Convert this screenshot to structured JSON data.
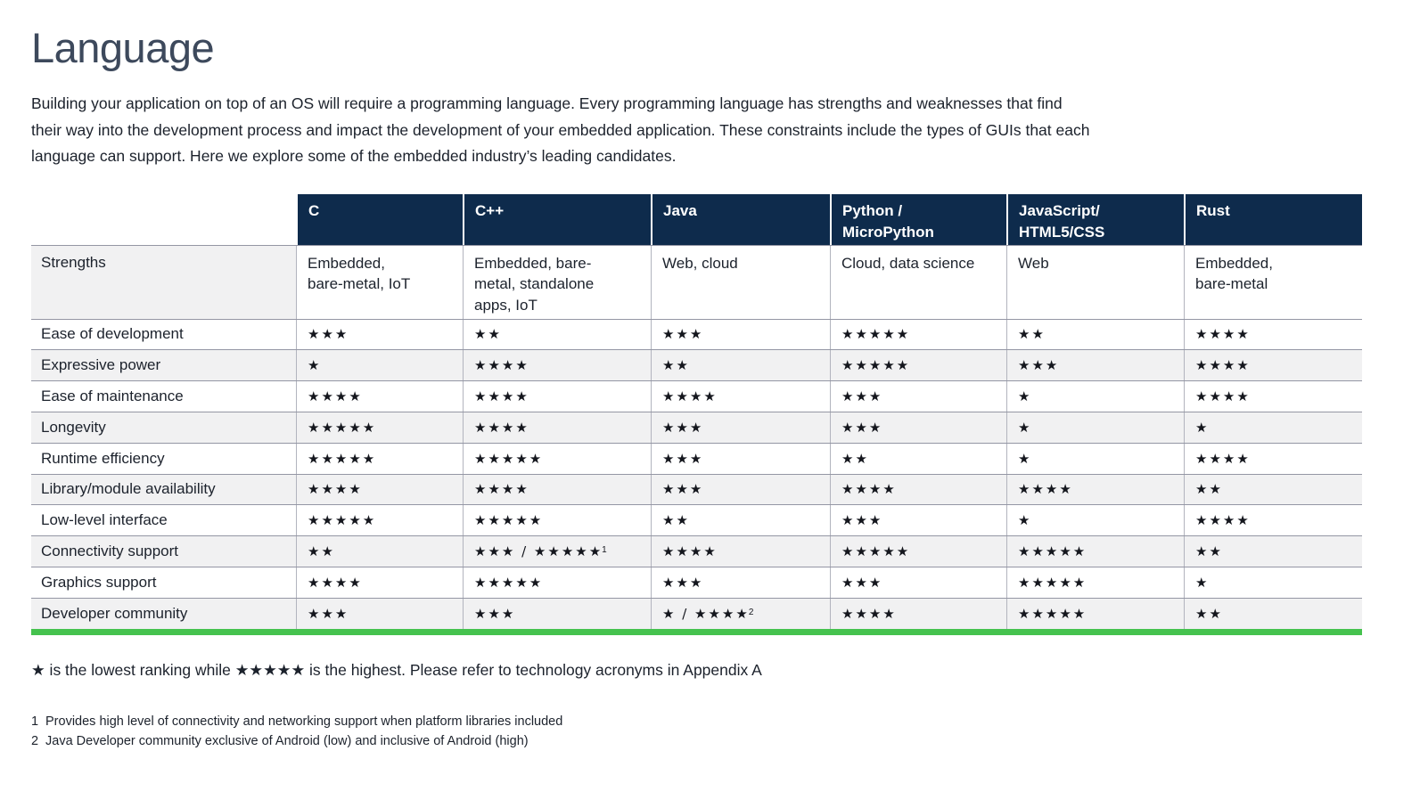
{
  "page": {
    "title": "Language",
    "intro_lines": [
      "Building your application on top of an OS will require a programming language. Every programming language has strengths and weaknesses that find",
      "their way into the development process and impact the development of your embedded application. These constraints include the types of GUIs that each",
      "language can support. Here we explore some of the embedded industry’s leading candidates."
    ]
  },
  "table": {
    "header": {
      "columns": [
        {
          "lines": [
            "C"
          ]
        },
        {
          "lines": [
            "C++"
          ]
        },
        {
          "lines": [
            "Java"
          ]
        },
        {
          "lines": [
            "Python /",
            "MicroPython"
          ]
        },
        {
          "lines": [
            "JavaScript/",
            "HTML5/CSS"
          ]
        },
        {
          "lines": [
            "Rust"
          ]
        }
      ]
    },
    "strengths_row": {
      "label": "Strengths",
      "cells": [
        {
          "lines": [
            "Embedded,",
            "bare-metal, IoT"
          ]
        },
        {
          "lines": [
            "Embedded, bare-",
            "metal, standalone",
            "apps, IoT"
          ]
        },
        {
          "lines": [
            "Web, cloud"
          ]
        },
        {
          "lines": [
            "Cloud, data science"
          ]
        },
        {
          "lines": [
            "Web"
          ]
        },
        {
          "lines": [
            "Embedded,",
            "bare-metal"
          ]
        }
      ]
    },
    "rating_rows": [
      {
        "label": "Ease of development",
        "cells": [
          {
            "stars": "★★★"
          },
          {
            "stars": "★★"
          },
          {
            "stars": "★★★"
          },
          {
            "stars": "★★★★★"
          },
          {
            "stars": "★★"
          },
          {
            "stars": "★★★★"
          }
        ]
      },
      {
        "label": "Expressive power",
        "cells": [
          {
            "stars": "★"
          },
          {
            "stars": "★★★★"
          },
          {
            "stars": "★★"
          },
          {
            "stars": "★★★★★"
          },
          {
            "stars": "★★★"
          },
          {
            "stars": "★★★★"
          }
        ]
      },
      {
        "label": "Ease of maintenance",
        "cells": [
          {
            "stars": "★★★★"
          },
          {
            "stars": "★★★★"
          },
          {
            "stars": "★★★★"
          },
          {
            "stars": "★★★"
          },
          {
            "stars": "★"
          },
          {
            "stars": "★★★★"
          }
        ]
      },
      {
        "label": "Longevity",
        "cells": [
          {
            "stars": "★★★★★"
          },
          {
            "stars": "★★★★"
          },
          {
            "stars": "★★★"
          },
          {
            "stars": "★★★"
          },
          {
            "stars": "★"
          },
          {
            "stars": "★"
          }
        ]
      },
      {
        "label": "Runtime efficiency",
        "cells": [
          {
            "stars": "★★★★★"
          },
          {
            "stars": "★★★★★"
          },
          {
            "stars": "★★★"
          },
          {
            "stars": "★★"
          },
          {
            "stars": "★"
          },
          {
            "stars": "★★★★"
          }
        ]
      },
      {
        "label": "Library/module availability",
        "cells": [
          {
            "stars": "★★★★"
          },
          {
            "stars": "★★★★"
          },
          {
            "stars": "★★★"
          },
          {
            "stars": "★★★★"
          },
          {
            "stars": "★★★★"
          },
          {
            "stars": "★★"
          }
        ]
      },
      {
        "label": "Low-level interface",
        "cells": [
          {
            "stars": "★★★★★"
          },
          {
            "stars": "★★★★★"
          },
          {
            "stars": "★★"
          },
          {
            "stars": "★★★"
          },
          {
            "stars": "★"
          },
          {
            "stars": "★★★★"
          }
        ]
      },
      {
        "label": "Connectivity support",
        "cells": [
          {
            "stars": "★★"
          },
          {
            "stars": "★★★ / ★★★★★",
            "sup": "1"
          },
          {
            "stars": "★★★★"
          },
          {
            "stars": "★★★★★"
          },
          {
            "stars": "★★★★★"
          },
          {
            "stars": "★★"
          }
        ]
      },
      {
        "label": "Graphics support",
        "cells": [
          {
            "stars": "★★★★"
          },
          {
            "stars": "★★★★★"
          },
          {
            "stars": "★★★"
          },
          {
            "stars": "★★★"
          },
          {
            "stars": "★★★★★"
          },
          {
            "stars": "★"
          }
        ]
      },
      {
        "label": "Developer community",
        "cells": [
          {
            "stars": "★★★"
          },
          {
            "stars": "★★★"
          },
          {
            "stars": "★ / ★★★★",
            "sup": "2"
          },
          {
            "stars": "★★★★"
          },
          {
            "stars": "★★★★★"
          },
          {
            "stars": "★★"
          }
        ]
      }
    ]
  },
  "legend": "★ is the lowest ranking while ★★★★★ is the highest. Please refer to technology acronyms in Appendix A",
  "footnotes": [
    {
      "num": "1",
      "text": "Provides high level of connectivity and networking support when platform libraries included"
    },
    {
      "num": "2",
      "text": "Java Developer community exclusive of Android (low) and inclusive of Android (high)"
    }
  ],
  "colors": {
    "header_bg": "#0e2b4c",
    "accent_green": "#45c24e",
    "row_alt_bg": "#f1f1f2",
    "title_color": "#3d495c",
    "text_color": "#1c222c",
    "star_color": "#14161d"
  }
}
